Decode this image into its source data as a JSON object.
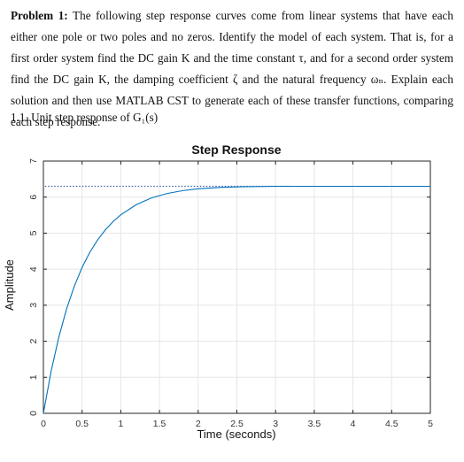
{
  "problem": {
    "label": "Problem 1:",
    "text": "The following step response curves come from linear systems that have each either one pole or two poles and no zeros. Identify the model of each system. That is, for a first order system find the DC gain K and the time constant τ, and for a second order system find the DC gain K, the damping coefficient ζ and the natural frequency ωₙ. Explain each solution and then use MATLAB CST to generate each of these transfer functions, comparing each step response."
  },
  "subheading": "1.1. Unit step response of G₁(s)",
  "chart_data": {
    "type": "line",
    "title": "Step Response",
    "xlabel": "Time (seconds)",
    "ylabel": "Amplitude",
    "xlim": [
      0,
      5
    ],
    "ylim": [
      0,
      7
    ],
    "xticks": [
      "0",
      "0.5",
      "1",
      "1.5",
      "2",
      "2.5",
      "3",
      "3.5",
      "4",
      "4.5",
      "5"
    ],
    "yticks": [
      "0",
      "1",
      "2",
      "3",
      "4",
      "5",
      "6",
      "7"
    ],
    "grid": true,
    "steady_state": 6.3,
    "series": [
      {
        "x": [
          0,
          0.1,
          0.2,
          0.3,
          0.4,
          0.5,
          0.6,
          0.7,
          0.8,
          0.9,
          1.0,
          1.2,
          1.4,
          1.6,
          1.8,
          2.0,
          2.3,
          2.6,
          3.0,
          3.5,
          4.0,
          4.5,
          5.0
        ],
        "y": [
          0,
          1.17,
          2.12,
          2.9,
          3.53,
          4.05,
          4.47,
          4.81,
          5.09,
          5.32,
          5.51,
          5.79,
          5.98,
          6.1,
          6.18,
          6.23,
          6.27,
          6.29,
          6.3,
          6.3,
          6.3,
          6.3,
          6.3
        ],
        "color": "#0072BD"
      }
    ],
    "colors": {
      "line": "#0072BD",
      "dotted": "#3f5fa8",
      "axis": "#262626",
      "grid": "#e6e6e6"
    }
  }
}
